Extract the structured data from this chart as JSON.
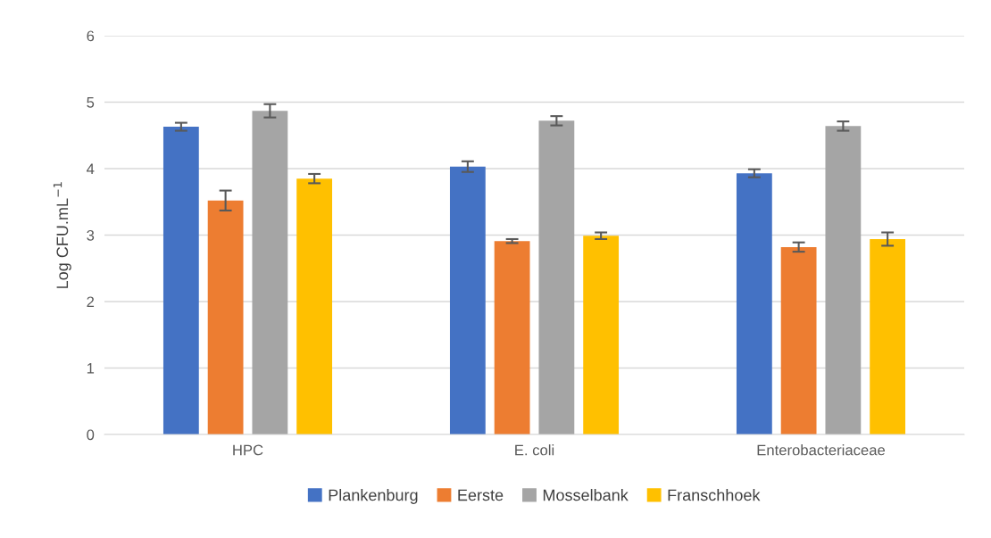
{
  "chart_data": {
    "type": "bar",
    "ylabel": "Log CFU.mL$^{−1}$",
    "categories": [
      "HPC",
      "E. coli",
      "Enterobacteriaceae"
    ],
    "series": [
      {
        "name": "Plankenburg",
        "color": "#4472c4",
        "values": [
          4.63,
          4.03,
          3.93
        ],
        "errors": [
          0.06,
          0.08,
          0.06
        ]
      },
      {
        "name": "Eerste",
        "color": "#ed7d31",
        "values": [
          3.52,
          2.91,
          2.82
        ],
        "errors": [
          0.15,
          0.03,
          0.07
        ]
      },
      {
        "name": "Mosselbank",
        "color": "#a5a5a5",
        "values": [
          4.87,
          4.72,
          4.64
        ],
        "errors": [
          0.1,
          0.07,
          0.07
        ]
      },
      {
        "name": "Franschhoek",
        "color": "#ffc000",
        "values": [
          3.85,
          2.99,
          2.94
        ],
        "errors": [
          0.07,
          0.05,
          0.1
        ]
      }
    ],
    "ylim": [
      0,
      6
    ],
    "yticks": [
      0,
      1,
      2,
      3,
      4,
      5,
      6
    ],
    "grid": "y",
    "legend": "bottom"
  }
}
